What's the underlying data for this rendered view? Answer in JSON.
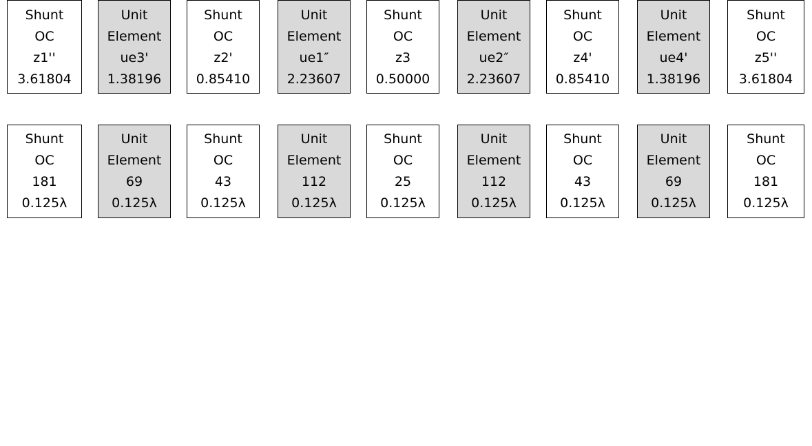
{
  "top_row": [
    {
      "kind": "shunt",
      "lines": [
        "Shunt",
        "OC",
        "z1''",
        "3.61804"
      ]
    },
    {
      "kind": "unit",
      "lines": [
        "Unit",
        "Element",
        "ue3'",
        "1.38196"
      ]
    },
    {
      "kind": "shunt",
      "lines": [
        "Shunt",
        "OC",
        "z2'",
        "0.85410"
      ]
    },
    {
      "kind": "unit",
      "lines": [
        "Unit",
        "Element",
        "ue1″",
        "2.23607"
      ]
    },
    {
      "kind": "shunt",
      "lines": [
        "Shunt",
        "OC",
        "z3",
        "0.50000"
      ]
    },
    {
      "kind": "unit",
      "lines": [
        "Unit",
        "Element",
        "ue2″",
        "2.23607"
      ]
    },
    {
      "kind": "shunt",
      "lines": [
        "Shunt",
        "OC",
        "z4'",
        "0.85410"
      ]
    },
    {
      "kind": "unit",
      "lines": [
        "Unit",
        "Element",
        "ue4'",
        "1.38196"
      ]
    },
    {
      "kind": "shunt",
      "lines": [
        "Shunt",
        "OC",
        "z5''",
        "3.61804"
      ]
    }
  ],
  "bottom_row": [
    {
      "kind": "shunt",
      "lines": [
        "Shunt",
        "OC",
        "181",
        "0.125λ"
      ]
    },
    {
      "kind": "unit",
      "lines": [
        "Unit",
        "Element",
        "69",
        "0.125λ"
      ]
    },
    {
      "kind": "shunt",
      "lines": [
        "Shunt",
        "OC",
        "43",
        "0.125λ"
      ]
    },
    {
      "kind": "unit",
      "lines": [
        "Unit",
        "Element",
        "112",
        "0.125λ"
      ]
    },
    {
      "kind": "shunt",
      "lines": [
        "Shunt",
        "OC",
        "25",
        "0.125λ"
      ]
    },
    {
      "kind": "unit",
      "lines": [
        "Unit",
        "Element",
        "112",
        "0.125λ"
      ]
    },
    {
      "kind": "shunt",
      "lines": [
        "Shunt",
        "OC",
        "43",
        "0.125λ"
      ]
    },
    {
      "kind": "unit",
      "lines": [
        "Unit",
        "Element",
        "69",
        "0.125λ"
      ]
    },
    {
      "kind": "shunt",
      "lines": [
        "Shunt",
        "OC",
        "181",
        "0.125λ"
      ]
    }
  ],
  "colors": {
    "shunt_fill": "#ffffff",
    "unit_fill": "#d9d9d9",
    "border": "#000000"
  }
}
